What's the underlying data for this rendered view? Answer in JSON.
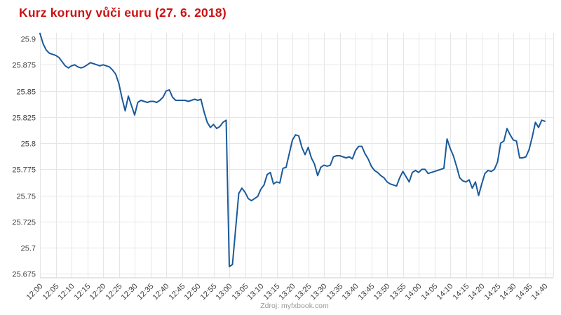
{
  "title": {
    "text": "Kurz koruny vůči euru (27. 6. 2018)",
    "color": "#cc1111"
  },
  "source": {
    "text": "Zdroj: myfxbook.com"
  },
  "chart_data": {
    "type": "line",
    "title": "Kurz koruny vůči euru (27. 6. 2018)",
    "xlabel": "",
    "ylabel": "",
    "x_start": "12:00",
    "x_end": "14:40",
    "x_interval_minutes": 1,
    "x_tick_interval_minutes": 5,
    "grid": true,
    "legend": "none",
    "line_color": "#1A5A9A",
    "ylim": [
      25.6716,
      25.9054
    ],
    "y_ticks": [
      25.9,
      25.875,
      25.85,
      25.825,
      25.8,
      25.775,
      25.75,
      25.725,
      25.7,
      25.675
    ],
    "y_tick_labels": [
      "25.9",
      "25.875",
      "25.85",
      "25.825",
      "25.8",
      "25.775",
      "25.75",
      "25.725",
      "25.7",
      "25.675"
    ],
    "x_tick_labels": [
      "12:00",
      "12:05",
      "12:10",
      "12:15",
      "12:20",
      "12:25",
      "12:30",
      "12:35",
      "12:40",
      "12:45",
      "12:50",
      "12:55",
      "13:00",
      "13:05",
      "13:10",
      "13:15",
      "13:20",
      "13:25",
      "13:30",
      "13:35",
      "13:40",
      "13:45",
      "13:50",
      "13:55",
      "14:00",
      "14:05",
      "14:10",
      "14:15",
      "14:20",
      "14:25",
      "14:30",
      "14:35",
      "14:40"
    ],
    "values": [
      25.905,
      25.895,
      25.889,
      25.886,
      25.885,
      25.884,
      25.882,
      25.878,
      25.874,
      25.872,
      25.874,
      25.875,
      25.873,
      25.872,
      25.873,
      25.875,
      25.877,
      25.876,
      25.875,
      25.874,
      25.875,
      25.874,
      25.873,
      25.87,
      25.866,
      25.857,
      25.843,
      25.831,
      25.845,
      25.836,
      25.827,
      25.839,
      25.841,
      25.84,
      25.839,
      25.84,
      25.84,
      25.839,
      25.841,
      25.844,
      25.85,
      25.851,
      25.844,
      25.841,
      25.841,
      25.841,
      25.841,
      25.84,
      25.841,
      25.842,
      25.841,
      25.842,
      25.83,
      25.82,
      25.815,
      25.818,
      25.814,
      25.816,
      25.82,
      25.822,
      25.682,
      25.684,
      25.718,
      25.752,
      25.757,
      25.753,
      25.747,
      25.745,
      25.747,
      25.749,
      25.756,
      25.76,
      25.77,
      25.772,
      25.761,
      25.763,
      25.762,
      25.776,
      25.777,
      25.79,
      25.803,
      25.808,
      25.807,
      25.796,
      25.789,
      25.796,
      25.786,
      25.78,
      25.769,
      25.777,
      25.779,
      25.778,
      25.779,
      25.787,
      25.788,
      25.788,
      25.787,
      25.786,
      25.787,
      25.785,
      25.793,
      25.797,
      25.797,
      25.79,
      25.785,
      25.778,
      25.774,
      25.772,
      25.769,
      25.767,
      25.763,
      25.761,
      25.76,
      25.759,
      25.767,
      25.773,
      25.768,
      25.763,
      25.772,
      25.774,
      25.772,
      25.775,
      25.775,
      25.771,
      25.772,
      25.773,
      25.774,
      25.775,
      25.776,
      25.804,
      25.795,
      25.788,
      25.778,
      25.767,
      25.764,
      25.763,
      25.765,
      25.757,
      25.763,
      25.75,
      25.761,
      25.771,
      25.774,
      25.773,
      25.775,
      25.782,
      25.8,
      25.802,
      25.814,
      25.808,
      25.803,
      25.802,
      25.786,
      25.786,
      25.787,
      25.794,
      25.806,
      25.82,
      25.815,
      25.822,
      25.821
    ],
    "source": "Zdroj: myfxbook.com"
  }
}
